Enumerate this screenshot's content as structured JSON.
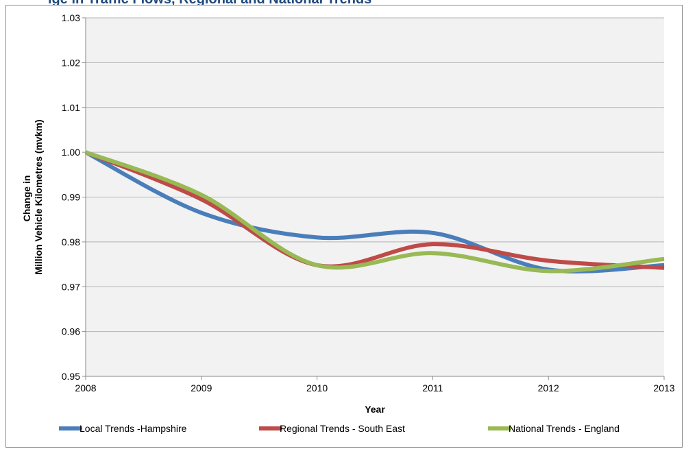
{
  "header": {
    "title_fragment": "ige in Traffic Flows, Regional and National Trends"
  },
  "chart_data": {
    "type": "line",
    "title": "",
    "xlabel": "Year",
    "ylabel_lines": [
      "Change in",
      "Million Vehicle Kilometres (mvkm)"
    ],
    "x": [
      2008,
      2009,
      2010,
      2011,
      2012,
      2013
    ],
    "xlim": [
      2008,
      2013
    ],
    "ylim": [
      0.95,
      1.03
    ],
    "yticks": [
      0.95,
      0.96,
      0.97,
      0.98,
      0.99,
      1.0,
      1.01,
      1.02,
      1.03
    ],
    "ytick_labels": [
      "0.95",
      "0.96",
      "0.97",
      "0.98",
      "0.99",
      "1.00",
      "1.01",
      "1.02",
      "1.03"
    ],
    "xtick_labels": [
      "2008",
      "2009",
      "2010",
      "2011",
      "2012",
      "2013"
    ],
    "grid": true,
    "smooth": true,
    "plot_background": "#f2f2f2",
    "legend_position": "bottom",
    "series": [
      {
        "name": "Local Trends -Hampshire",
        "color": "#4a7ebb",
        "values": [
          1.0,
          0.9865,
          0.981,
          0.982,
          0.9738,
          0.9748
        ]
      },
      {
        "name": "Regional Trends - South East",
        "color": "#be4b48",
        "values": [
          1.0,
          0.9895,
          0.9748,
          0.9795,
          0.9758,
          0.9742
        ]
      },
      {
        "name": "National Trends - England",
        "color": "#98b954",
        "values": [
          1.0,
          0.9905,
          0.9748,
          0.9775,
          0.9735,
          0.9762
        ]
      }
    ]
  }
}
